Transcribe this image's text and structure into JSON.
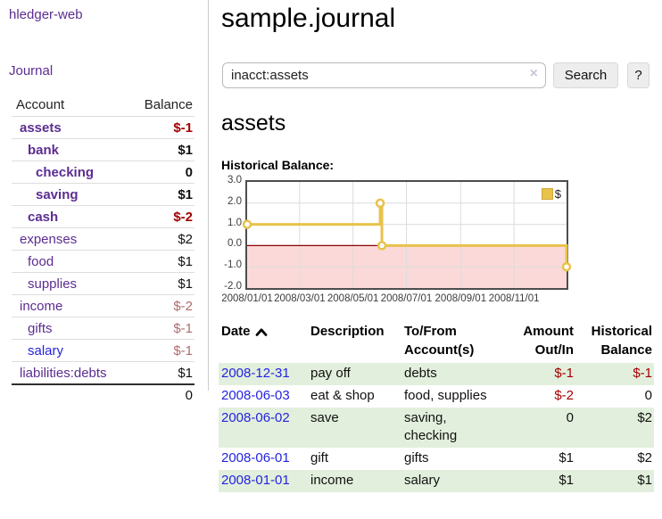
{
  "app": {
    "brand": "hledger-web"
  },
  "colors": {
    "link-purple": "#5c2d91",
    "link-blue": "#2424e0",
    "negative": "#a40000",
    "negative-muted": "#b06c6c",
    "row-highlight": "#e2efdc",
    "accent-gold": "#e8c24a",
    "negative-fill": "#fbd9d9",
    "zero-line": "#8b0000",
    "grid": "#dcdcdc",
    "chart-border": "#4d4d4d"
  },
  "sidebar": {
    "nav": {
      "journal_label": "Journal"
    },
    "accounts_table": {
      "headers": {
        "account": "Account",
        "balance": "Balance"
      },
      "rows": [
        {
          "account": "assets",
          "indent": 0,
          "bold": true,
          "balance": "$-1",
          "balance_class": "neg"
        },
        {
          "account": "bank",
          "indent": 1,
          "bold": true,
          "balance": "$1",
          "balance_class": ""
        },
        {
          "account": "checking",
          "indent": 2,
          "bold": true,
          "balance": "0",
          "balance_class": ""
        },
        {
          "account": "saving",
          "indent": 2,
          "bold": true,
          "balance": "$1",
          "balance_class": ""
        },
        {
          "account": "cash",
          "indent": 1,
          "bold": true,
          "balance": "$-2",
          "balance_class": "neg"
        },
        {
          "account": "expenses",
          "indent": 0,
          "bold": false,
          "balance": "$2",
          "balance_class": ""
        },
        {
          "account": "food",
          "indent": 1,
          "bold": false,
          "balance": "$1",
          "balance_class": ""
        },
        {
          "account": "supplies",
          "indent": 1,
          "bold": false,
          "balance": "$1",
          "balance_class": ""
        },
        {
          "account": "income",
          "indent": 0,
          "bold": false,
          "balance": "$-2",
          "balance_class": "neg-muted"
        },
        {
          "account": "gifts",
          "indent": 1,
          "bold": false,
          "balance": "$-1",
          "balance_class": "neg-muted"
        },
        {
          "account": "salary",
          "indent": 1,
          "bold": false,
          "balance": "$-1",
          "balance_class": "neg-muted",
          "unvisited": true
        },
        {
          "account": "liabilities:debts",
          "indent": 0,
          "bold": false,
          "balance": "$1",
          "balance_class": ""
        }
      ],
      "total": "0"
    }
  },
  "main": {
    "title": "sample.journal",
    "search": {
      "value": "inacct:assets",
      "clear_icon": "×",
      "search_label": "Search",
      "help_label": "?"
    },
    "section_title": "assets",
    "chart_label": "Historical Balance:"
  },
  "chart_data": {
    "type": "line",
    "title": "Historical Balance:",
    "step": true,
    "ylim": [
      -2,
      3
    ],
    "x_domain_days": [
      0,
      365
    ],
    "yticks": [
      "3.0",
      "2.0",
      "1.0",
      "0.0",
      "-1.0",
      "-2.0"
    ],
    "xticks": [
      {
        "day": 0,
        "label": "2008/01/01"
      },
      {
        "day": 60,
        "label": "2008/03/01"
      },
      {
        "day": 121,
        "label": "2008/05/01"
      },
      {
        "day": 182,
        "label": "2008/07/01"
      },
      {
        "day": 244,
        "label": "2008/09/01"
      },
      {
        "day": 305,
        "label": "2008/11/01"
      }
    ],
    "grid_y_values": [
      2,
      1,
      -1
    ],
    "series": [
      {
        "name": "$",
        "points": [
          [
            0,
            1
          ],
          [
            152,
            1
          ],
          [
            152,
            2
          ],
          [
            154,
            2
          ],
          [
            154,
            0
          ],
          [
            365,
            0
          ],
          [
            365,
            -1
          ]
        ],
        "markers": [
          [
            0,
            1
          ],
          [
            152,
            2
          ],
          [
            154,
            0
          ],
          [
            365,
            -1
          ]
        ]
      }
    ],
    "legend": {
      "label": "$",
      "position": "top-right"
    },
    "negative_region_shaded": true,
    "zero_line": true
  },
  "register": {
    "headers": [
      {
        "label": "Date",
        "sorted": "ascending"
      },
      {
        "label": "Description"
      },
      {
        "label": "To/From Account(s)"
      },
      {
        "label": "Amount Out/In",
        "align": "right"
      },
      {
        "label": "Historical Balance",
        "align": "right"
      }
    ],
    "rows": [
      {
        "date": "2008-12-31",
        "description": "pay off",
        "accounts": "debts",
        "amount": "$-1",
        "amount_neg": true,
        "balance": "$-1",
        "balance_neg": true,
        "highlight": true
      },
      {
        "date": "2008-06-03",
        "description": "eat & shop",
        "accounts": "food, supplies",
        "amount": "$-2",
        "amount_neg": true,
        "balance": "0",
        "balance_neg": false,
        "highlight": false
      },
      {
        "date": "2008-06-02",
        "description": "save",
        "accounts": "saving, checking",
        "amount": "0",
        "amount_neg": false,
        "balance": "$2",
        "balance_neg": false,
        "highlight": true
      },
      {
        "date": "2008-06-01",
        "description": "gift",
        "accounts": "gifts",
        "amount": "$1",
        "amount_neg": false,
        "balance": "$2",
        "balance_neg": false,
        "highlight": false
      },
      {
        "date": "2008-01-01",
        "description": "income",
        "accounts": "salary",
        "amount": "$1",
        "amount_neg": false,
        "balance": "$1",
        "balance_neg": false,
        "highlight": true
      }
    ]
  }
}
